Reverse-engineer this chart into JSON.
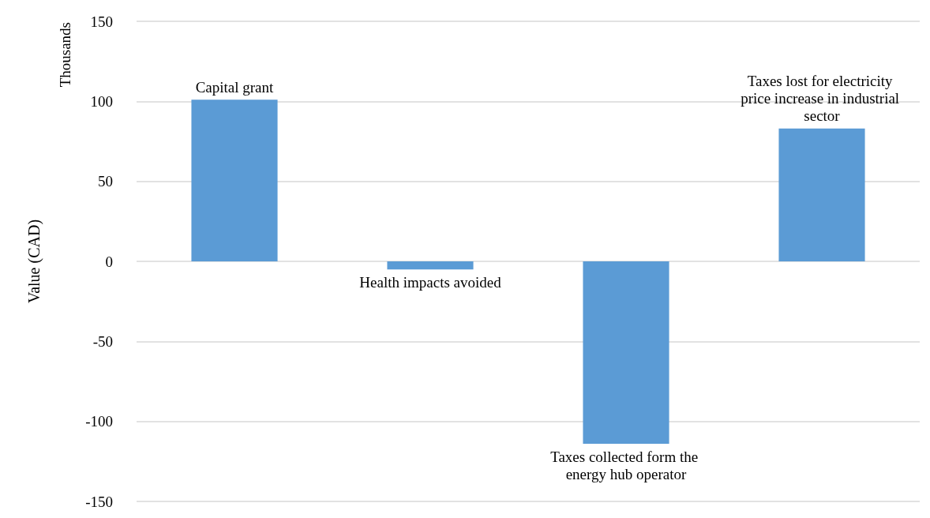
{
  "chart_data": {
    "type": "bar",
    "ylabel": "Value (CAD)",
    "annotations": [
      "Thousands"
    ],
    "categories": [
      "Capital grant",
      "Health impacts avoided",
      "Taxes collected form the energy hub operator",
      "Taxes lost for electricity price increase in industrial sector"
    ],
    "values": [
      101,
      -5,
      -114,
      83
    ],
    "color": "#5b9bd5",
    "ylim": [
      -150,
      150
    ],
    "yticks": [
      -150,
      -100,
      -50,
      0,
      50,
      100,
      150
    ],
    "grid": "y",
    "tick_labels": "y"
  }
}
